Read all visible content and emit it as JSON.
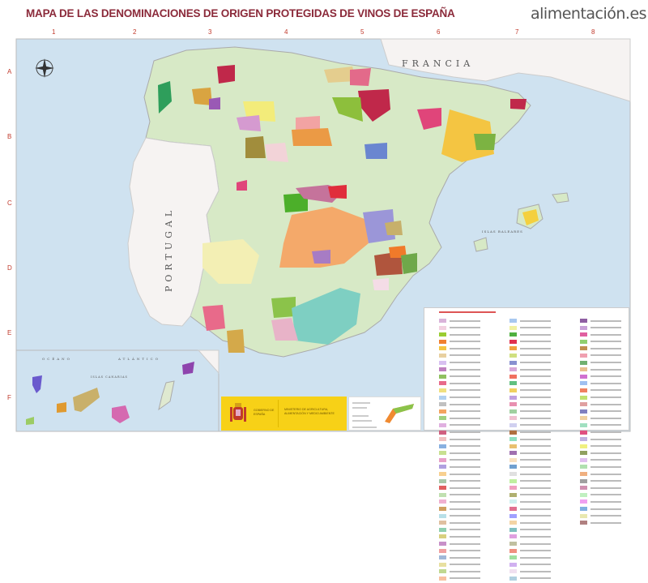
{
  "header": {
    "title": "MAPA DE LAS DENOMINACIONES DE ORIGEN PROTEGIDAS DE VINOS DE ESPAÑA",
    "logo": "alimentación.es"
  },
  "grid": {
    "columns": [
      "1",
      "2",
      "3",
      "4",
      "5",
      "6",
      "7",
      "8"
    ],
    "rows": [
      "A",
      "B",
      "C",
      "D",
      "E",
      "F"
    ]
  },
  "map_labels": {
    "france": "FRANCIA",
    "portugal": "PORTUGAL",
    "ocean_left": "OCÉANO",
    "ocean_right": "ATLÁNTICO",
    "canarias": "ISLAS CANARIAS",
    "baleares": "ISLAS BALEARES"
  },
  "icons": {
    "compass": "compass-rose-icon",
    "coat_of_arms": "spain-coat-of-arms-icon"
  },
  "colors": {
    "sea": "#cfe2f0",
    "land_spain": "#d7e9c6",
    "land_other": "#f6f3f2",
    "title": "#8b2a3a",
    "grid_labels": "#c0392b",
    "gov_yellow": "#f7d117"
  },
  "footer": {
    "gov": "GOBIERNO DE ESPAÑA",
    "ministry": "MINISTERIO DE AGRICULTURA, ALIMENTACIÓN Y MEDIO AMBIENTE"
  },
  "legend_swatches": [
    [
      "#d9b3d9",
      "#f2d0e0",
      "#9acd32",
      "#f08030",
      "#f4c542",
      "#e8d0a0",
      "#d8c0f0",
      "#c080c0",
      "#90c060",
      "#e86a8a",
      "#f0e080",
      "#b0d0f0",
      "#c0c0c0",
      "#f4a460",
      "#a0d080",
      "#e0b0e0",
      "#d06080",
      "#f0c0c0",
      "#88b0e0",
      "#c8e090",
      "#e8a0c8",
      "#b0a0e0",
      "#f8d090",
      "#a8c8a8",
      "#e06060",
      "#c0e0b0",
      "#f0b0d0",
      "#d0a060",
      "#b8e0e8",
      "#e0c0a0",
      "#90d0b0",
      "#d8d080",
      "#c890c8",
      "#f0a0a0",
      "#a0b8d8",
      "#e8e0a0",
      "#c0d890",
      "#f8c0a0"
    ],
    [
      "#a8c8f0",
      "#f0f0a0",
      "#50b040",
      "#e03050",
      "#f0a040",
      "#d0e080",
      "#8890d0",
      "#d8a8d8",
      "#f07060",
      "#60c080",
      "#f0d060",
      "#c0a0e0",
      "#e890b0",
      "#a0d0a0",
      "#f0c0d0",
      "#d0d0f0",
      "#b07040",
      "#90e0c0",
      "#e8c070",
      "#a070b0",
      "#f8e0c0",
      "#70a0d0",
      "#e0e0e0",
      "#c0f0a0",
      "#f0a0c0",
      "#b0b070",
      "#d0f0f0",
      "#e07090",
      "#a0a0ff",
      "#f4d4a4",
      "#80c0c0",
      "#e0a0e0",
      "#c0c0a0",
      "#f09080",
      "#a0e0a0",
      "#d0b0f0",
      "#f0e0f0",
      "#b0d0e0"
    ],
    [
      "#8e5ea2",
      "#c8a0d8",
      "#e060a0",
      "#90d070",
      "#c09050",
      "#f0a0b0",
      "#70b070",
      "#e8c090",
      "#d070d0",
      "#a0c0f0",
      "#f08060",
      "#c0e070",
      "#e0a0a0",
      "#8080c0",
      "#f0d0a0",
      "#a0e0c0",
      "#e05080",
      "#c0b0e0",
      "#f0f080",
      "#90a060",
      "#e0c0f0",
      "#b0e0b0",
      "#f0b080",
      "#a0a0a0",
      "#d090b0",
      "#c0f0c0",
      "#f0a0f0",
      "#80b0e0",
      "#e8e8b0",
      "#b08080"
    ]
  ]
}
